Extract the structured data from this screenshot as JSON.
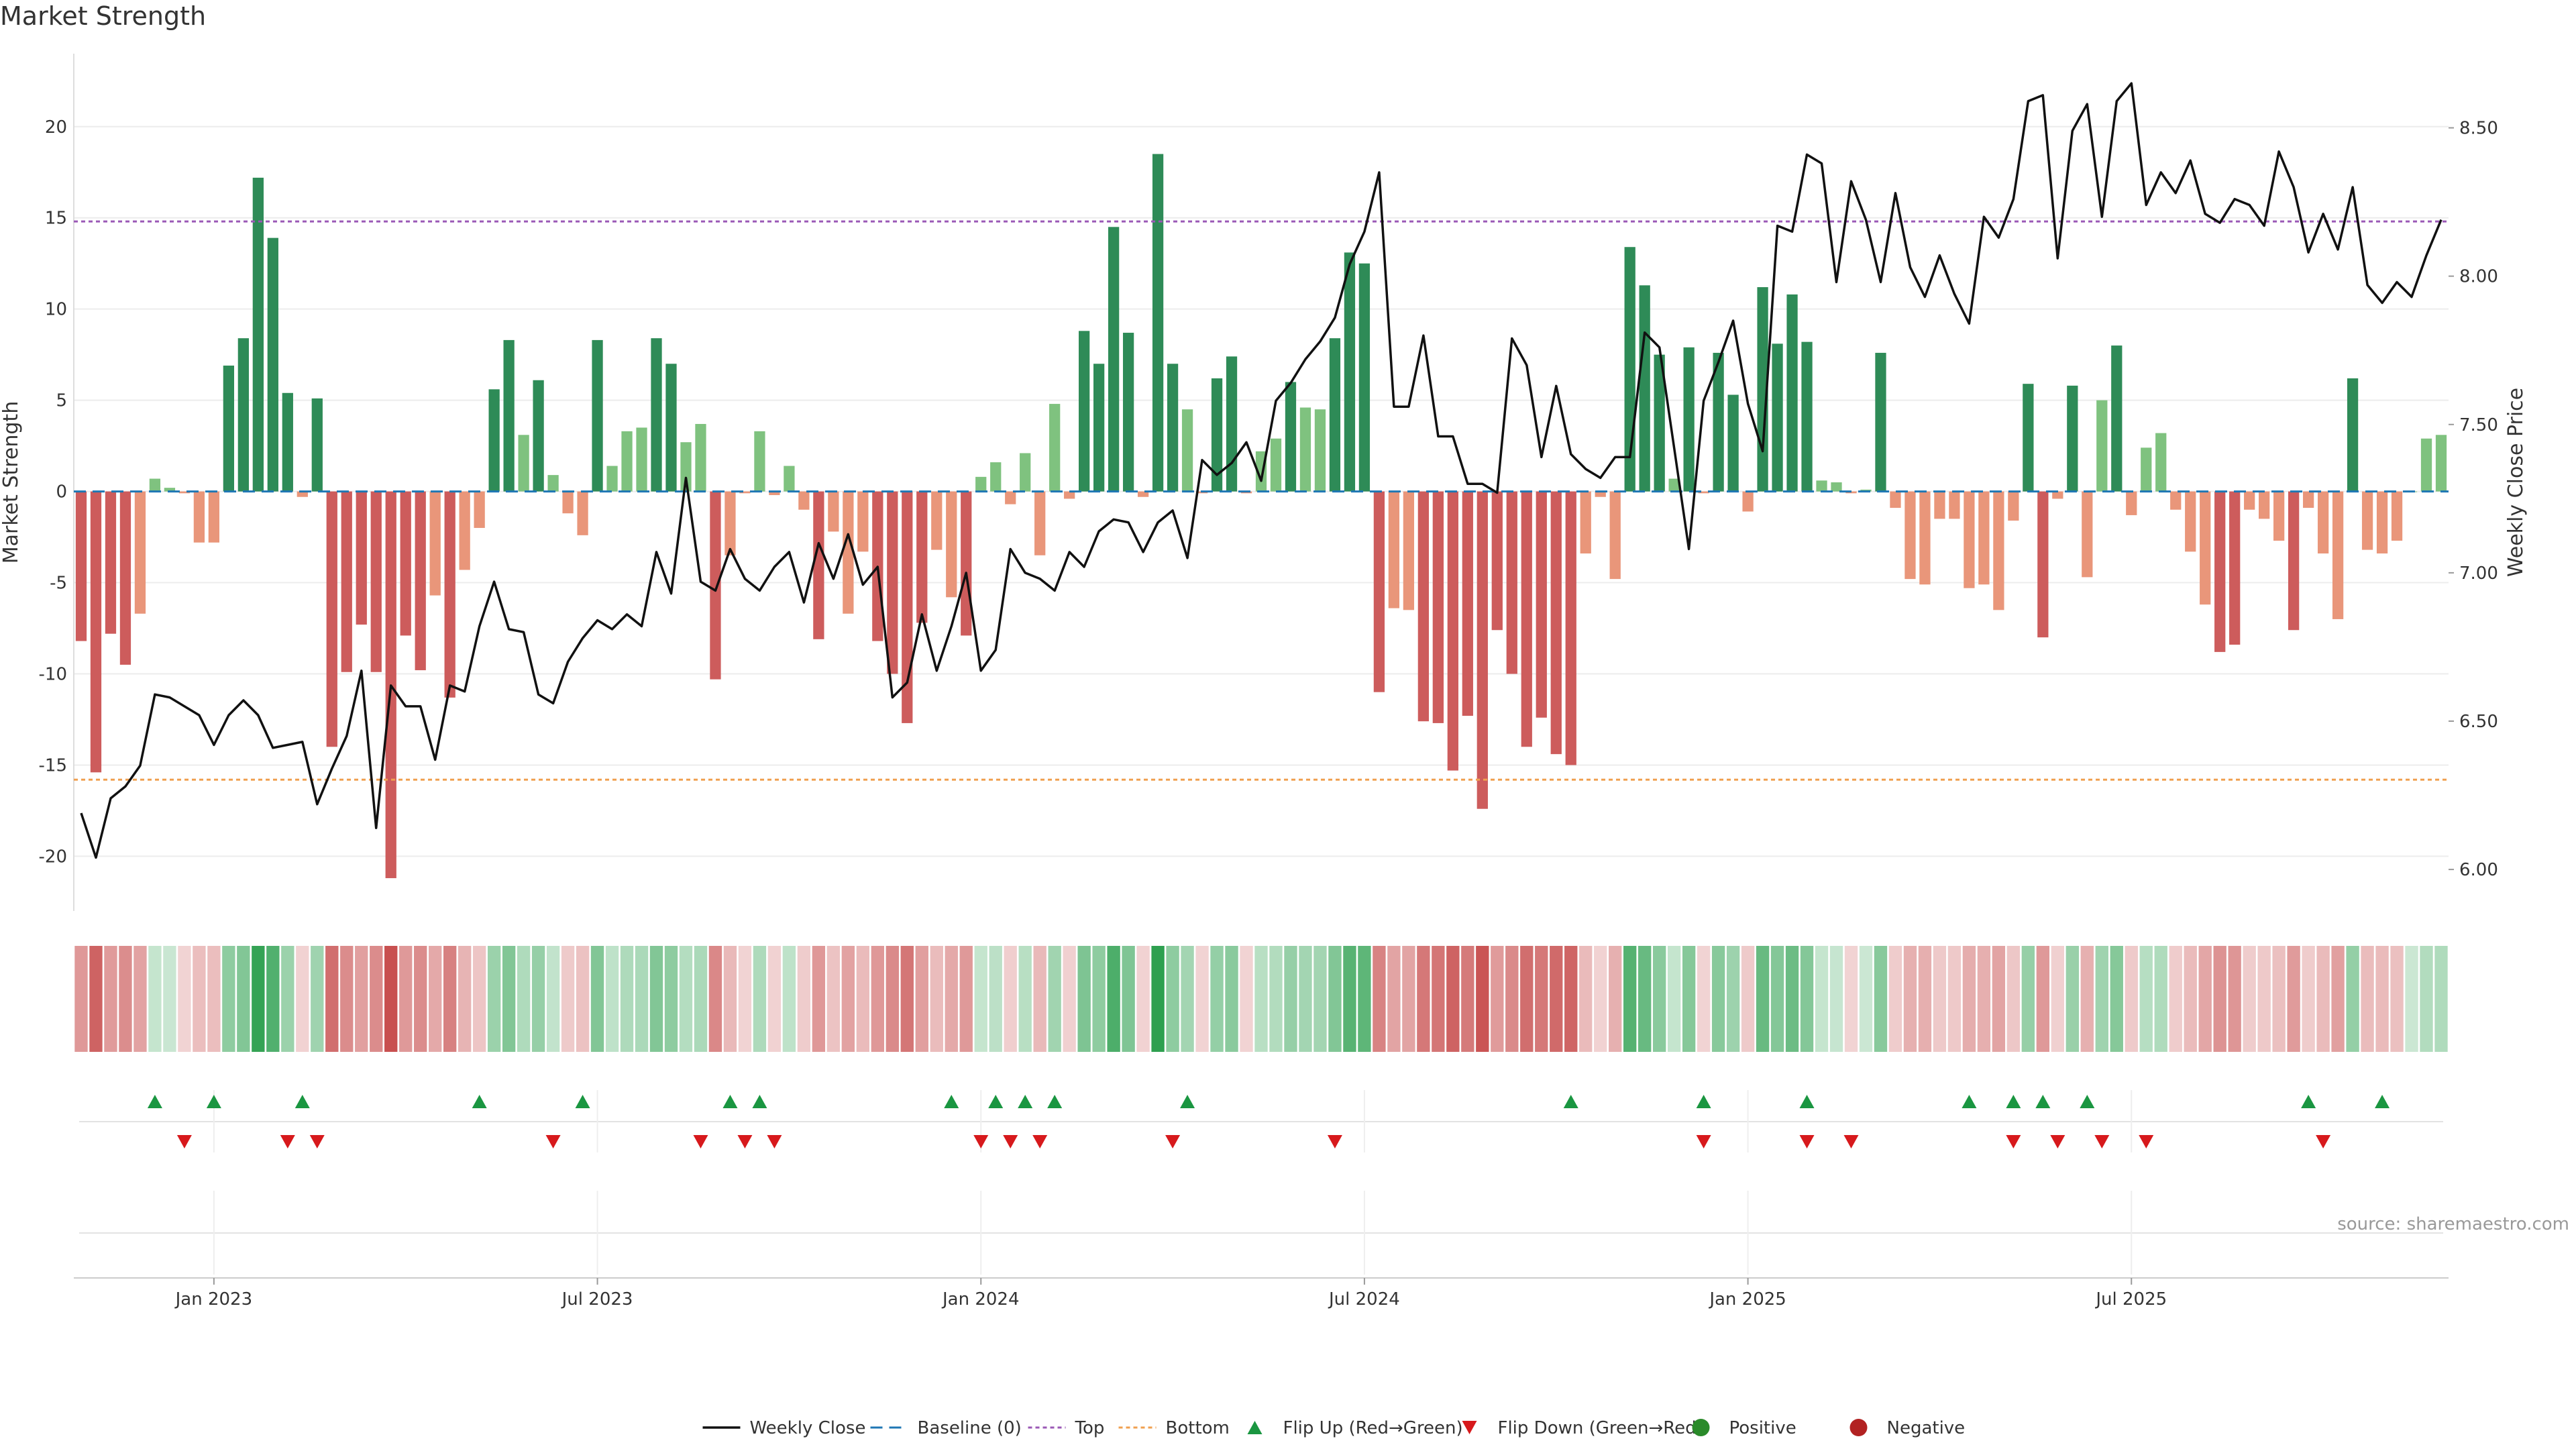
{
  "chart_data": {
    "type": "bar",
    "title": "Market Strength",
    "source": "source: sharemaestro.com",
    "ylabel_left": "Market Strength",
    "ylabel_right": "Weekly Close Price",
    "ylim_left": [
      -23,
      24
    ],
    "ylim_right": [
      5.86,
      8.75
    ],
    "yticks_left": [
      20,
      15,
      10,
      5,
      0,
      -5,
      -10,
      -15,
      -20
    ],
    "yticks_right": [
      "8.50",
      "8.00",
      "7.50",
      "7.00",
      "6.50",
      "6.00"
    ],
    "xticks": [
      "Jan 2023",
      "Jul 2023",
      "Jan 2024",
      "Jul 2024",
      "Jan 2025",
      "Jul 2025"
    ],
    "top_threshold": 14.8,
    "bottom_threshold": -15.8,
    "colors": {
      "strong_pos": "#2e8b57",
      "weak_pos": "#7fc27f",
      "strong_neg": "#cd5c5c",
      "weak_neg": "#e9967a",
      "price": "#111111",
      "top": "#9b59b6",
      "bottom": "#f0a050",
      "flip_up": "#1a9641",
      "flip_down": "#d7191c",
      "baseline": "#1f77b4"
    },
    "strength": [
      -8.2,
      -15.4,
      -7.8,
      -9.5,
      -6.7,
      0.7,
      0.2,
      -0.1,
      -2.8,
      -2.8,
      6.9,
      8.4,
      17.2,
      13.9,
      5.4,
      -0.3,
      5.1,
      -14.0,
      -9.9,
      -7.3,
      -9.9,
      -21.2,
      -7.9,
      -9.8,
      -5.7,
      -11.3,
      -4.3,
      -2.0,
      5.6,
      8.3,
      3.1,
      6.1,
      0.9,
      -1.2,
      -2.4,
      8.3,
      1.4,
      3.3,
      3.5,
      8.4,
      7.0,
      2.7,
      3.7,
      -10.3,
      -3.5,
      -0.1,
      3.3,
      -0.2,
      1.4,
      -1.0,
      -8.1,
      -2.2,
      -6.7,
      -3.3,
      -8.2,
      -10.0,
      -12.7,
      -7.2,
      -3.2,
      -5.8,
      -7.9,
      0.8,
      1.6,
      -0.7,
      2.1,
      -3.5,
      4.8,
      -0.4,
      8.8,
      7.0,
      14.5,
      8.7,
      -0.3,
      18.5,
      7.0,
      4.5,
      -0.1,
      6.2,
      7.4,
      -0.1,
      2.2,
      2.9,
      6.0,
      4.6,
      4.5,
      8.4,
      13.1,
      12.5,
      -11.0,
      -6.4,
      -6.5,
      -12.6,
      -12.7,
      -15.3,
      -12.3,
      -17.4,
      -7.6,
      -10.0,
      -14.0,
      -12.4,
      -14.4,
      -15.0,
      -3.4,
      -0.3,
      -4.8,
      13.4,
      11.3,
      7.5,
      0.7,
      7.9,
      -0.1,
      7.6,
      5.3,
      -1.1,
      11.2,
      8.1,
      10.8,
      8.2,
      0.6,
      0.5,
      -0.1,
      0.1,
      7.6,
      -0.9,
      -4.8,
      -5.1,
      -1.5,
      -1.5,
      -5.3,
      -5.1,
      -6.5,
      -1.6,
      5.9,
      -8.0,
      -0.4,
      5.8,
      -4.7,
      5.0,
      8.0,
      -1.3,
      2.4,
      3.2,
      -1.0,
      -3.3,
      -6.2,
      -8.8,
      -8.4,
      -1.0,
      -1.5,
      -2.7,
      -7.6,
      -0.9,
      -3.4,
      -7.0,
      6.2,
      -3.2,
      -3.4,
      -2.7,
      0.0,
      2.9,
      3.1
    ],
    "price": [
      6.19,
      6.04,
      6.24,
      6.28,
      6.35,
      6.59,
      6.58,
      6.55,
      6.52,
      6.42,
      6.52,
      6.57,
      6.52,
      6.41,
      6.42,
      6.43,
      6.22,
      6.34,
      6.45,
      6.67,
      6.14,
      6.62,
      6.55,
      6.55,
      6.37,
      6.62,
      6.6,
      6.82,
      6.97,
      6.81,
      6.8,
      6.59,
      6.56,
      6.7,
      6.78,
      6.84,
      6.81,
      6.86,
      6.82,
      7.07,
      6.93,
      7.32,
      6.97,
      6.94,
      7.08,
      6.98,
      6.94,
      7.02,
      7.07,
      6.9,
      7.1,
      6.98,
      7.13,
      6.96,
      7.02,
      6.58,
      6.63,
      6.86,
      6.67,
      6.82,
      7.0,
      6.67,
      6.74,
      7.08,
      7.0,
      6.98,
      6.94,
      7.07,
      7.02,
      7.14,
      7.18,
      7.17,
      7.07,
      7.17,
      7.21,
      7.05,
      7.38,
      7.33,
      7.37,
      7.44,
      7.31,
      7.58,
      7.64,
      7.72,
      7.78,
      7.86,
      8.04,
      8.15,
      8.35,
      7.56,
      7.56,
      7.8,
      7.46,
      7.46,
      7.3,
      7.3,
      7.27,
      7.79,
      7.7,
      7.39,
      7.63,
      7.4,
      7.35,
      7.32,
      7.39,
      7.39,
      7.81,
      7.76,
      7.42,
      7.08,
      7.58,
      7.71,
      7.85,
      7.57,
      7.41,
      8.17,
      8.15,
      8.41,
      8.38,
      7.98,
      8.32,
      8.19,
      7.98,
      8.28,
      8.03,
      7.93,
      8.07,
      7.94,
      7.84,
      8.2,
      8.13,
      8.26,
      8.59,
      8.61,
      8.06,
      8.49,
      8.58,
      8.2,
      8.59,
      8.65,
      8.24,
      8.35,
      8.28,
      8.39,
      8.21,
      8.18,
      8.26,
      8.24,
      8.17,
      8.42,
      8.3,
      8.08,
      8.21,
      8.09,
      8.3,
      7.97,
      7.91,
      7.98,
      7.93,
      8.07,
      8.19
    ],
    "flip_up_idx": [
      5,
      9,
      15,
      27,
      34,
      44,
      46,
      59,
      62,
      64,
      66,
      75,
      101,
      110,
      117,
      128,
      131,
      133,
      136,
      151,
      156
    ],
    "flip_down_idx": [
      7,
      14,
      16,
      32,
      42,
      45,
      47,
      61,
      63,
      65,
      74,
      85,
      110,
      117,
      120,
      131,
      134,
      137,
      140,
      152
    ],
    "legend": [
      "Weekly Close",
      "Baseline (0)",
      "Top",
      "Bottom",
      "Flip Up (Red→Green)",
      "Flip Down (Green→Red)",
      "Positive",
      "Negative"
    ]
  }
}
